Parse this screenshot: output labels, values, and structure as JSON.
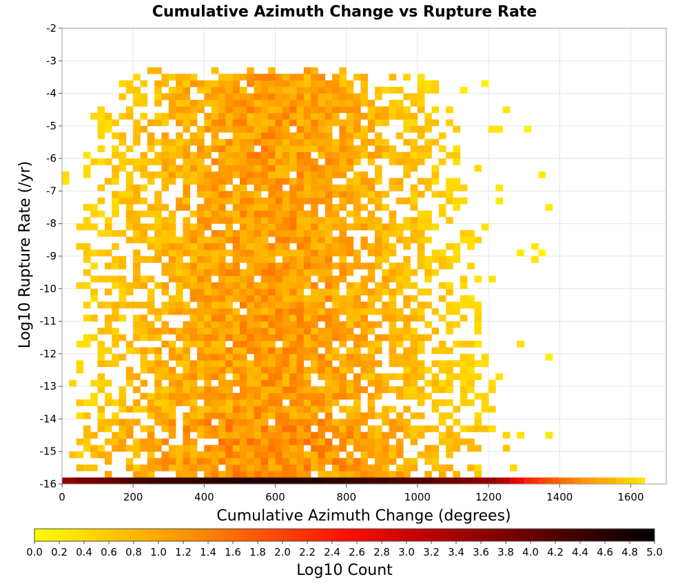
{
  "chart_data": {
    "type": "heatmap",
    "title": "Cumulative Azimuth Change vs Rupture Rate",
    "xlabel": "Cumulative Azimuth Change (degrees)",
    "ylabel": "Log10 Rupture Rate (/yr)",
    "xlim": [
      0,
      1700
    ],
    "ylim": [
      -16,
      -2
    ],
    "x_ticks": [
      "0",
      "200",
      "400",
      "600",
      "800",
      "1000",
      "1200",
      "1400",
      "1600"
    ],
    "y_ticks": [
      "-2",
      "-3",
      "-4",
      "-5",
      "-6",
      "-7",
      "-8",
      "-9",
      "-10",
      "-11",
      "-12",
      "-13",
      "-14",
      "-15",
      "-16"
    ],
    "bin_width_x": 20,
    "bin_height_y": 0.2,
    "grid": true,
    "colorbar": {
      "label": "Log10 Count",
      "range": [
        0,
        5
      ],
      "ticks": [
        "0.0",
        "0.2",
        "0.4",
        "0.6",
        "0.8",
        "1.0",
        "1.2",
        "1.4",
        "1.6",
        "1.8",
        "2.0",
        "2.2",
        "2.4",
        "2.6",
        "2.8",
        "3.0",
        "3.2",
        "3.4",
        "3.6",
        "3.8",
        "4.0",
        "4.2",
        "4.4",
        "4.6",
        "4.8",
        "5.0"
      ],
      "colors": [
        "#ffff00",
        "#ffc800",
        "#ff9000",
        "#ff5000",
        "#ff1000",
        "#c00000",
        "#800000",
        "#400000",
        "#000000"
      ]
    },
    "density_model": {
      "description": "approximate density of occupied bins",
      "x_extent": [
        0,
        1360
      ],
      "y_extent": [
        -15.8,
        -3.4
      ],
      "peak_log10_count": 1.3,
      "peak_x": 580,
      "bottom_row": {
        "y": -16,
        "values": [
          {
            "x": 0,
            "v": 3.6
          },
          {
            "x": 200,
            "v": 4.3
          },
          {
            "x": 400,
            "v": 4.6
          },
          {
            "x": 600,
            "v": 4.7
          },
          {
            "x": 800,
            "v": 4.5
          },
          {
            "x": 1000,
            "v": 4.2
          },
          {
            "x": 1200,
            "v": 3.6
          },
          {
            "x": 1300,
            "v": 2.4
          },
          {
            "x": 1400,
            "v": 1.6
          },
          {
            "x": 1500,
            "v": 1.0
          },
          {
            "x": 1620,
            "v": 0.3
          }
        ]
      }
    }
  }
}
